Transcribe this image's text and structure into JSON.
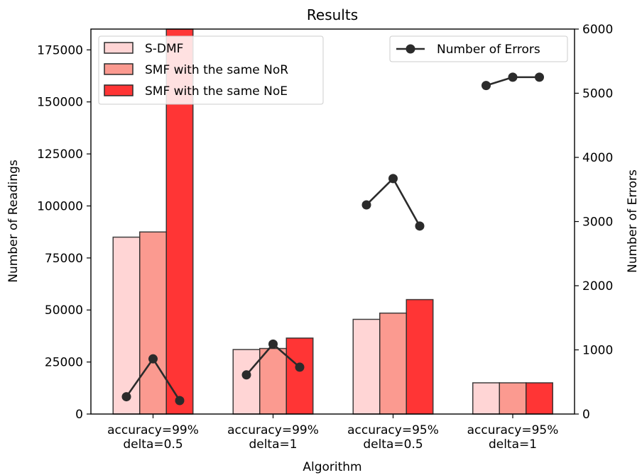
{
  "chart_data": {
    "type": "bar",
    "title": "Results",
    "xlabel": "Algorithm",
    "ylabel": "Number of Readings",
    "y2label": "Number of Errors",
    "categories": [
      [
        "accuracy=99%",
        "delta=0.5"
      ],
      [
        "accuracy=99%",
        "delta=1"
      ],
      [
        "accuracy=95%",
        "delta=0.5"
      ],
      [
        "accuracy=95%",
        "delta=1"
      ]
    ],
    "ylim": [
      0,
      185000
    ],
    "y2lim": [
      0,
      6000
    ],
    "yticks": [
      0,
      25000,
      50000,
      75000,
      100000,
      125000,
      150000,
      175000
    ],
    "y2ticks": [
      0,
      1000,
      2000,
      3000,
      4000,
      5000,
      6000
    ],
    "series": [
      {
        "name": "S-DMF",
        "color": "#ffd5d5",
        "values": [
          85000,
          31000,
          45500,
          15000
        ]
      },
      {
        "name": "SMF with the same NoR",
        "color": "#fb9a90",
        "values": [
          87500,
          31500,
          48500,
          15000
        ]
      },
      {
        "name": "SMF with the same NoE",
        "color": "#ff3535",
        "values": [
          185000,
          36500,
          55000,
          15000
        ]
      }
    ],
    "line_series": {
      "name": "Number of Errors",
      "color": "#2b2b2b",
      "groups": [
        [
          270,
          860,
          210
        ],
        [
          610,
          1090,
          730
        ],
        [
          3260,
          3670,
          2930
        ],
        [
          5120,
          5250,
          5250
        ]
      ]
    },
    "legend_left": "upper-left",
    "legend_right": "upper-right",
    "grid": false
  }
}
